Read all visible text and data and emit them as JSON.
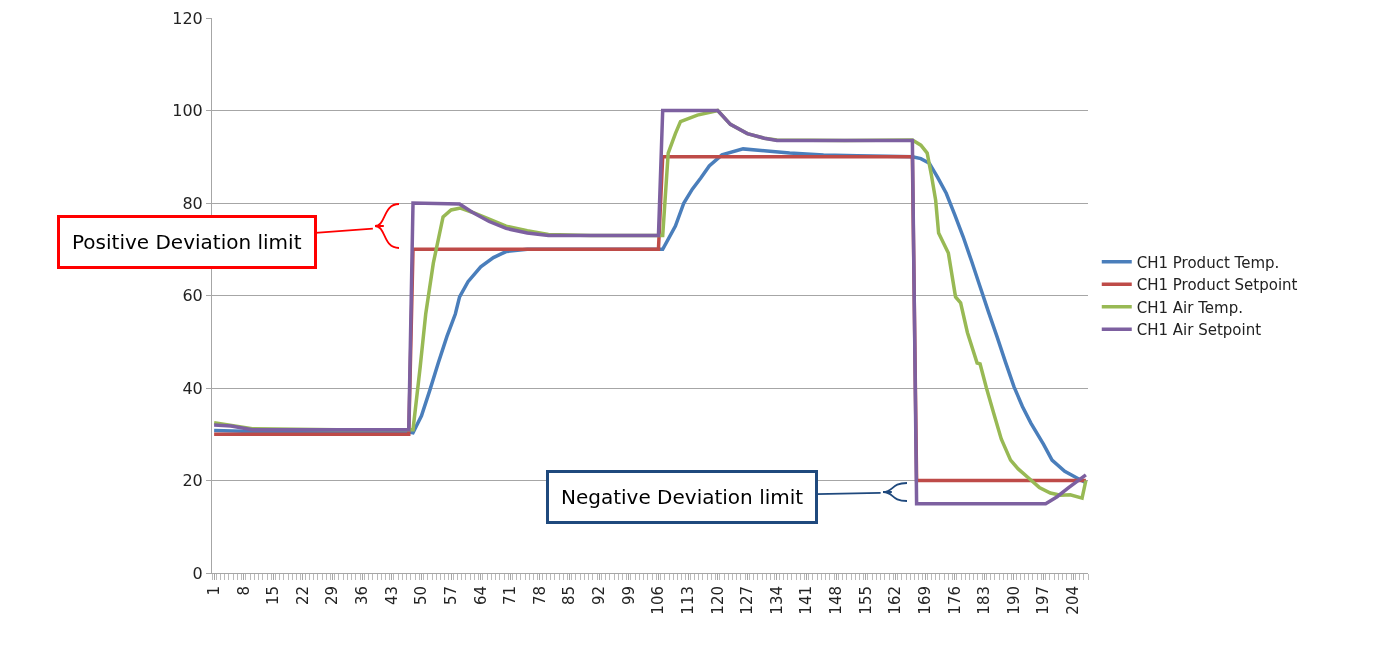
{
  "chart_data": {
    "type": "line",
    "xlim": [
      0.5,
      207.5
    ],
    "xticks": [
      1,
      8,
      15,
      22,
      29,
      36,
      43,
      50,
      57,
      64,
      71,
      78,
      85,
      92,
      99,
      106,
      113,
      120,
      127,
      134,
      141,
      148,
      155,
      162,
      169,
      176,
      183,
      190,
      197,
      204
    ],
    "ylim": [
      0,
      120
    ],
    "yticks": [
      0,
      20,
      40,
      60,
      80,
      100,
      120
    ],
    "grid": "y",
    "legend": "right",
    "marker": "none",
    "line_style": "solid",
    "series": [
      {
        "name": "CH1 Product Temp.",
        "color": "#4a7ebb",
        "x": [
          1,
          10,
          30,
          47,
          48,
          50,
          52,
          54,
          56,
          58,
          59,
          61,
          64,
          67,
          70,
          75,
          90,
          106,
          107,
          110,
          112,
          114,
          116,
          118,
          121,
          126,
          131,
          137,
          145,
          153,
          160,
          166,
          168,
          170,
          172,
          174,
          176,
          178,
          180,
          182,
          184,
          186,
          188,
          190,
          192,
          194,
          197,
          199,
          202,
          205,
          207
        ],
        "values": [
          30.8,
          30.6,
          30.5,
          30.5,
          30.3,
          34,
          39.6,
          45.5,
          51.1,
          56,
          59.7,
          63,
          66.2,
          68.2,
          69.5,
          70,
          70,
          70,
          70,
          75,
          80,
          83,
          85.4,
          88,
          90.4,
          91.7,
          91.3,
          90.8,
          90.4,
          90.2,
          90.1,
          90,
          89.6,
          88.6,
          85.5,
          82.1,
          77.5,
          72.7,
          67.4,
          61.9,
          56.4,
          51.1,
          45.6,
          40.3,
          36,
          32.4,
          27.8,
          24.4,
          22,
          20.5,
          19.5
        ]
      },
      {
        "name": "CH1 Product Setpoint",
        "color": "#be4b48",
        "x": [
          1,
          47,
          48,
          106,
          107,
          166,
          167,
          207
        ],
        "values": [
          30,
          30,
          70,
          70,
          90,
          90,
          20,
          20
        ]
      },
      {
        "name": "CH1 Air Temp.",
        "color": "#98b954",
        "x": [
          1,
          10,
          30,
          47,
          48,
          49.7,
          51,
          52.8,
          55.1,
          57,
          59.2,
          62,
          66,
          70,
          75,
          80,
          90,
          106,
          107,
          108.3,
          110,
          111.2,
          115.2,
          119,
          120,
          123,
          127,
          131,
          134,
          150,
          166,
          168,
          169.5,
          170.5,
          171.5,
          172.2,
          174.5,
          176.2,
          177.4,
          179,
          181.3,
          182,
          183.5,
          185.2,
          187,
          189.2,
          191,
          194,
          196,
          198.6,
          201,
          203.3,
          206.1,
          207
        ],
        "values": [
          32.5,
          31.2,
          31,
          31,
          31,
          44.6,
          56,
          67,
          77,
          78.5,
          78.9,
          78,
          76.5,
          75,
          74,
          73.2,
          73,
          73,
          73,
          90.8,
          95,
          97.6,
          99,
          99.8,
          100,
          97,
          95,
          94,
          93.6,
          93.5,
          93.6,
          92.5,
          90.8,
          86,
          80.6,
          73.5,
          69.2,
          59.7,
          58.4,
          52,
          45.4,
          45.2,
          40,
          34.6,
          29,
          24.4,
          22.5,
          20.1,
          18.5,
          17.3,
          16.8,
          16.9,
          16.2,
          20
        ]
      },
      {
        "name": "CH1 Air Setpoint",
        "color": "#7d60a0",
        "x": [
          1,
          5,
          10,
          47,
          48,
          59,
          62,
          66,
          70,
          75,
          80,
          106,
          107,
          120,
          123,
          127,
          131,
          134,
          166,
          167,
          197.5,
          200.2,
          203,
          207
        ],
        "values": [
          32,
          31.8,
          31,
          31,
          80,
          79.8,
          78,
          76,
          74.5,
          73.5,
          73,
          73,
          100,
          100,
          97,
          95,
          94,
          93.5,
          93.5,
          15,
          15,
          16.5,
          18.5,
          21.2
        ]
      }
    ],
    "annotations": [
      {
        "text": "Positive Deviation limit",
        "x": 47,
        "y": 75
      },
      {
        "text": "Negative Deviation limit",
        "x": 167,
        "y": 17.5
      }
    ]
  }
}
